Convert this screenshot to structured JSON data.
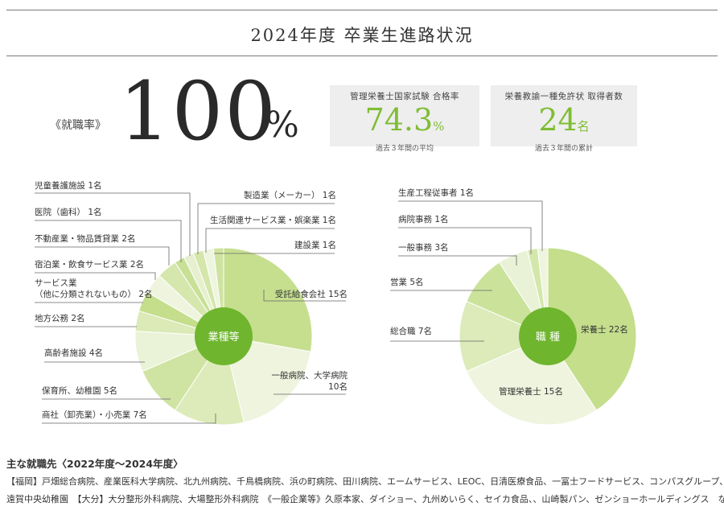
{
  "page_title": "2024年度 卒業生進路状況",
  "employment": {
    "label": "《就職率》",
    "value": "100",
    "unit": "%"
  },
  "exam_box": {
    "label": "管理栄養士国家試験 合格率",
    "value_main": "74.3",
    "value_unit": "%",
    "note": "過去３年間の平均",
    "background": "#eeeeee"
  },
  "license_box": {
    "label": "栄養教諭一種免許状 取得者数",
    "value_main": "24",
    "value_unit": "名",
    "note": "過去３年間の累計",
    "background": "#eeeeee"
  },
  "colors": {
    "accent": "#7fbd33",
    "center": "#6fb52e",
    "leader": "#666666"
  },
  "chart_data": [
    {
      "type": "pie",
      "center_label": "業種等",
      "unit": "名",
      "slices": [
        {
          "label": "受託給食会社",
          "display": "受託給食会社 15名",
          "value": 15,
          "color": "#c6df8f"
        },
        {
          "label": "一般病院、大学病院",
          "display_lines": [
            "一般病院、大学病院",
            "10名"
          ],
          "value": 10,
          "color": "#eef4de"
        },
        {
          "label": "商社（卸売業）・小売業",
          "display": "商社（卸売業）・小売業 7名",
          "value": 7,
          "color": "#dcebb9"
        },
        {
          "label": "保育所、幼稚園",
          "display": "保育所、幼稚園 5名",
          "value": 5,
          "color": "#cfe4a3"
        },
        {
          "label": "高齢者施設",
          "display": "高齢者施設 4名",
          "value": 4,
          "color": "#eaf2d8"
        },
        {
          "label": "地方公務",
          "display": "地方公務 2名",
          "value": 2,
          "color": "#dbeab6"
        },
        {
          "label": "サービス業（他に分類されないもの）",
          "display_lines": [
            "サービス業",
            "（他に分類されないもの） 2名"
          ],
          "value": 2,
          "color": "#c4de8c"
        },
        {
          "label": "宿泊業・飲食サービス業",
          "display": "宿泊業・飲食サービス業 2名",
          "value": 2,
          "color": "#eef4de"
        },
        {
          "label": "不動産業・物品賃貸業",
          "display": "不動産業・物品賃貸業 2名",
          "value": 2,
          "color": "#d5e7ad"
        },
        {
          "label": "医院（歯科）",
          "display": "医院（歯科） 1名",
          "value": 1,
          "color": "#c8e095"
        },
        {
          "label": "児童養護施設",
          "display": "児童養護施設 1名",
          "value": 1,
          "color": "#e6f0cf"
        },
        {
          "label": "製造業（メーカー）",
          "display": "製造業（メーカー） 1名",
          "value": 1,
          "color": "#d4e6aa"
        },
        {
          "label": "生活関連サービス業・娯楽業",
          "display": "生活関連サービス業・娯楽業 1名",
          "value": 1,
          "color": "#eef5df"
        },
        {
          "label": "建設業",
          "display": "建設業 1名",
          "value": 1,
          "color": "#cfe3a0"
        }
      ]
    },
    {
      "type": "pie",
      "center_label": "職 種",
      "unit": "名",
      "slices": [
        {
          "label": "栄養士",
          "display": "栄養士 22名",
          "value": 22,
          "color": "#c4de8c"
        },
        {
          "label": "管理栄養士",
          "display": "管理栄養士 15名",
          "value": 15,
          "color": "#eef4de"
        },
        {
          "label": "総合職",
          "display": "総合職 7名",
          "value": 7,
          "color": "#dcebb9"
        },
        {
          "label": "営業",
          "display": "営業 5名",
          "value": 5,
          "color": "#cbe29b"
        },
        {
          "label": "一般事務",
          "display": "一般事務 3名",
          "value": 3,
          "color": "#e9f2d6"
        },
        {
          "label": "病院事務",
          "display": "病院事務 1名",
          "value": 1,
          "color": "#d4e7ab"
        },
        {
          "label": "生産工程従事者",
          "display": "生産工程従事者 1名",
          "value": 1,
          "color": "#eef5df"
        }
      ]
    }
  ],
  "employers": {
    "heading": "主な就職先〈2022年度～2024年度〉",
    "line1": "【福岡】戸畑総合病院、産業医科大学病院、北九州病院、千鳥橋病院、浜の町病院、田川病院、エームサービス、LEOC、日清医療食品、一冨士フードサービス、コンパスグループ、",
    "line2": "遠賀中央幼稚園　【大分】大分整形外科病院、大場整形外科病院　《一般企業等》久原本家、ダイショー、九州めいらく、セイカ食品、、山崎製パン、ゼンショーホールディングス　など"
  }
}
